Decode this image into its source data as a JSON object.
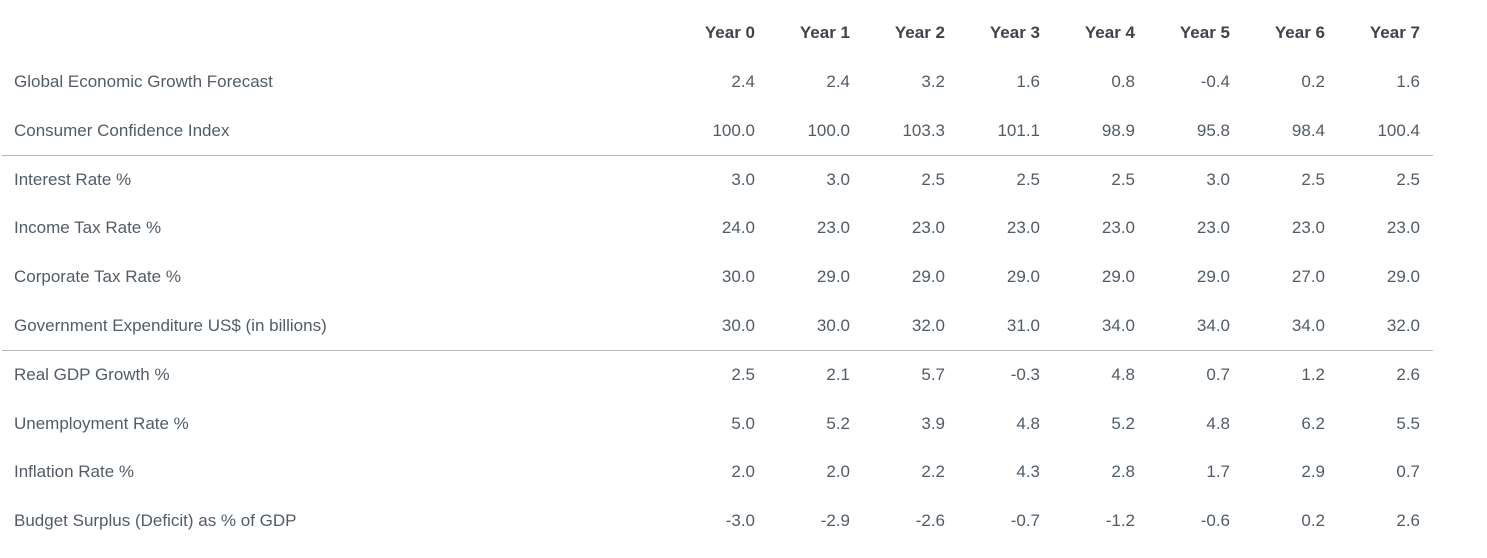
{
  "chart_data": {
    "type": "table",
    "title": "",
    "columns": [
      "Year 0",
      "Year 1",
      "Year 2",
      "Year 3",
      "Year 4",
      "Year 5",
      "Year 6",
      "Year 7"
    ],
    "rows": [
      {
        "label": "Global Economic Growth Forecast",
        "values": [
          "2.4",
          "2.4",
          "3.2",
          "1.6",
          "0.8",
          "-0.4",
          "0.2",
          "1.6"
        ]
      },
      {
        "label": "Consumer Confidence Index",
        "values": [
          "100.0",
          "100.0",
          "103.3",
          "101.1",
          "98.9",
          "95.8",
          "98.4",
          "100.4"
        ]
      },
      {
        "label": "Interest Rate %",
        "values": [
          "3.0",
          "3.0",
          "2.5",
          "2.5",
          "2.5",
          "3.0",
          "2.5",
          "2.5"
        ]
      },
      {
        "label": "Income Tax Rate %",
        "values": [
          "24.0",
          "23.0",
          "23.0",
          "23.0",
          "23.0",
          "23.0",
          "23.0",
          "23.0"
        ]
      },
      {
        "label": "Corporate Tax Rate %",
        "values": [
          "30.0",
          "29.0",
          "29.0",
          "29.0",
          "29.0",
          "29.0",
          "27.0",
          "29.0"
        ]
      },
      {
        "label": "Government Expenditure US$ (in billions)",
        "values": [
          "30.0",
          "30.0",
          "32.0",
          "31.0",
          "34.0",
          "34.0",
          "34.0",
          "32.0"
        ]
      },
      {
        "label": "Real GDP Growth %",
        "values": [
          "2.5",
          "2.1",
          "5.7",
          "-0.3",
          "4.8",
          "0.7",
          "1.2",
          "2.6"
        ]
      },
      {
        "label": "Unemployment Rate %",
        "values": [
          "5.0",
          "5.2",
          "3.9",
          "4.8",
          "5.2",
          "4.8",
          "6.2",
          "5.5"
        ]
      },
      {
        "label": "Inflation Rate %",
        "values": [
          "2.0",
          "2.0",
          "2.2",
          "4.3",
          "2.8",
          "1.7",
          "2.9",
          "0.7"
        ]
      },
      {
        "label": "Budget Surplus (Deficit) as % of GDP",
        "values": [
          "-3.0",
          "-2.9",
          "-2.6",
          "-0.7",
          "-1.2",
          "-0.6",
          "0.2",
          "2.6"
        ]
      }
    ],
    "section_breaks_before_rows": [
      "Interest Rate %",
      "Real GDP Growth %"
    ],
    "layout_hints": {
      "grid": "off",
      "numeric_alignment": "right",
      "label_alignment": "left"
    }
  },
  "colors": {
    "header_text": "#3e444c",
    "body_text": "#515c66",
    "divider": "#b5b7bb",
    "background": "#ffffff"
  }
}
